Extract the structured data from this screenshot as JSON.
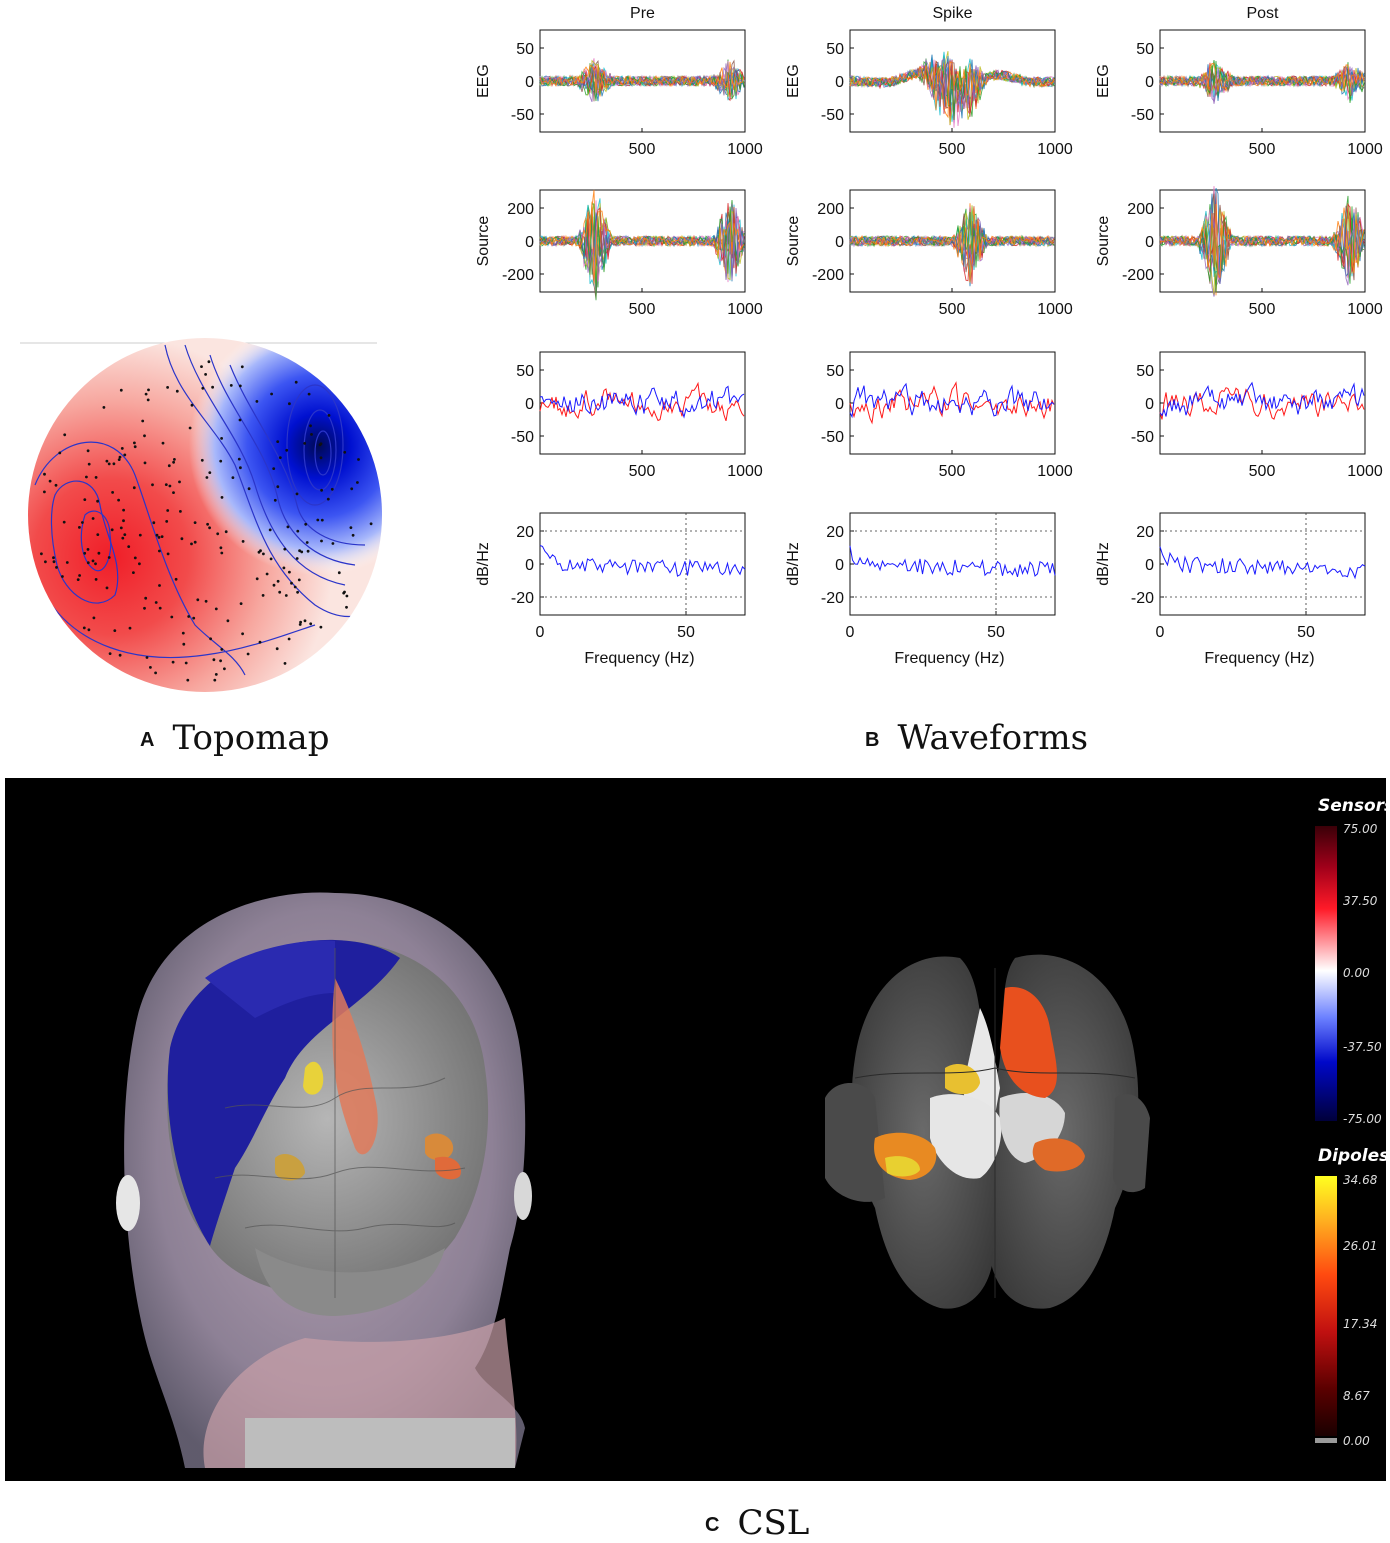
{
  "panels": {
    "a": {
      "letter": "A",
      "title": "Topomap"
    },
    "b": {
      "letter": "B",
      "title": "Waveforms"
    },
    "c": {
      "letter": "C",
      "title": "CSL"
    }
  },
  "waveforms": {
    "columns": [
      "Pre",
      "Spike",
      "Post"
    ],
    "rows": [
      {
        "ylabel": "EEG",
        "yticks": [
          "50",
          "0",
          "-50"
        ],
        "xticks": [
          "500",
          "1000"
        ]
      },
      {
        "ylabel": "Source",
        "yticks": [
          "200",
          "0",
          "-200"
        ],
        "xticks": [
          "500",
          "1000"
        ]
      },
      {
        "ylabel": "",
        "yticks": [
          "50",
          "0",
          "-50"
        ],
        "xticks": [
          "500",
          "1000"
        ]
      },
      {
        "ylabel": "dB/Hz",
        "yticks": [
          "20",
          "0",
          "-20"
        ],
        "xticks": [
          "0",
          "50"
        ],
        "xlabel": "Frequency (Hz)"
      }
    ]
  },
  "colorbars": {
    "sensors": {
      "title": "Sensors",
      "ticks": [
        "75.00",
        "37.50",
        "0.00",
        "-37.50",
        "-75.00"
      ]
    },
    "dipoles": {
      "title": "Dipoles",
      "ticks": [
        "34.68",
        "26.01",
        "17.34",
        "8.67",
        "0.00"
      ]
    }
  },
  "colors": {
    "red": "#e8202a",
    "blue": "#1f2dd6",
    "contour": "#2b35c9"
  }
}
